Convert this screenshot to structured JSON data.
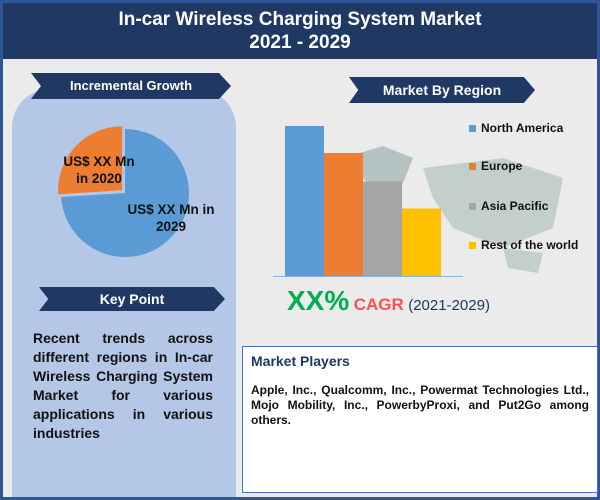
{
  "header": {
    "title_line1": "In-car Wireless Charging System Market",
    "title_line2": "2021 - 2029"
  },
  "incremental": {
    "heading": "Incremental Growth",
    "label_2020": "US$ XX Mn in 2020",
    "label_2029": "US$ XX Mn in 2029"
  },
  "key_point": {
    "heading": "Key Point",
    "text": "Recent trends across different regions in In-car Wireless Charging System Market for various applications in various industries"
  },
  "region": {
    "heading": "Market By Region"
  },
  "cagr": {
    "value": "XX%",
    "label": "CAGR",
    "period": "(2021-2029)"
  },
  "players": {
    "heading": "Market Players",
    "text": "Apple, Inc., Qualcomm, Inc., Powermat Technologies Ltd., Mojo Mobility, Inc., PowerbyProxi, and Put2Go among others."
  },
  "chart_data": [
    {
      "type": "pie",
      "slices": [
        {
          "label": "US$ XX Mn in 2020",
          "value": 26,
          "color": "#ed7d31"
        },
        {
          "label": "US$ XX Mn in 2029",
          "value": 74,
          "color": "#5b9bd5"
        }
      ]
    },
    {
      "type": "bar",
      "categories": [
        "North America",
        "Europe",
        "Asia Pacific",
        "Rest of the world"
      ],
      "values": [
        100,
        82,
        63,
        45
      ],
      "colors": [
        "#5b9bd5",
        "#ed7d31",
        "#a5a5a5",
        "#ffc000"
      ],
      "legend": "right",
      "grid": false
    }
  ]
}
